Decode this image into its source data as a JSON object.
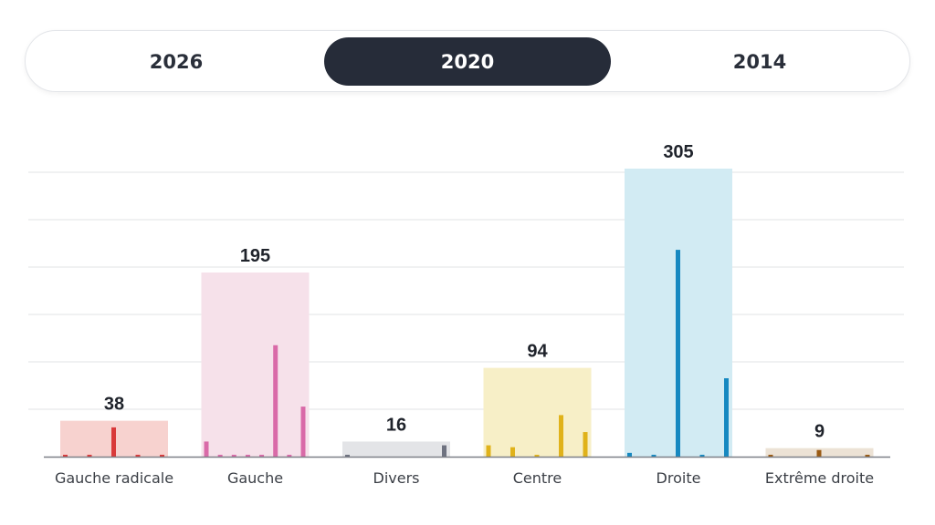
{
  "tabs": [
    "2026",
    "2020",
    "2014"
  ],
  "active_tab": "2020",
  "chart_data": {
    "type": "bar",
    "title": "",
    "xlabel": "",
    "ylabel": "",
    "ylim": [
      0,
      305
    ],
    "grid": true,
    "categories": [
      "Gauche radicale",
      "Gauche",
      "Divers",
      "Centre",
      "Droite",
      "Extrême droite"
    ],
    "values": [
      38,
      195,
      16,
      94,
      305,
      9
    ],
    "colors": {
      "bg": [
        "#f7d2cf",
        "#f6e1ea",
        "#e3e4e7",
        "#f7efc7",
        "#d2ebf3",
        "#ece2d5"
      ],
      "bar": [
        "#d93a3a",
        "#d96aa8",
        "#6e7280",
        "#e0b21a",
        "#1688c0",
        "#9a5a12"
      ]
    },
    "sub_values": [
      [
        2,
        2,
        31,
        2,
        2
      ],
      [
        16,
        2,
        2,
        2,
        2,
        118,
        2,
        53
      ],
      [
        2,
        12
      ],
      [
        12,
        10,
        2,
        44,
        26
      ],
      [
        4,
        2,
        219,
        2,
        83
      ],
      [
        2,
        7,
        2
      ]
    ]
  }
}
